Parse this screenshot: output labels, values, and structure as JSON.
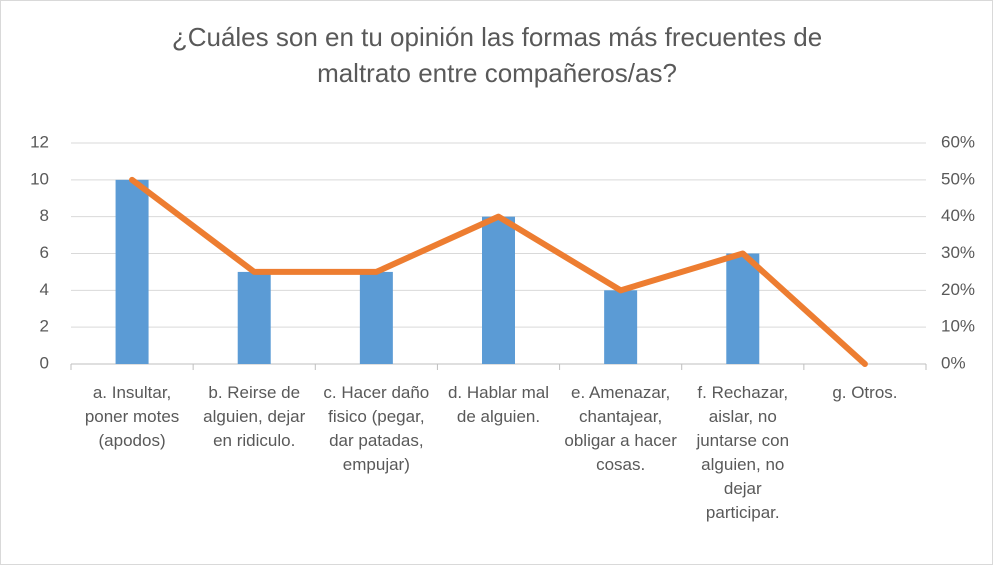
{
  "chart_data": {
    "type": "combo",
    "title": "¿Cuáles son en tu opinión las formas más frecuentes de maltrato entre compañeros/as?",
    "categories": [
      "a. Insultar, poner motes (apodos)",
      "b. Reirse de alguien, dejar en ridiculo.",
      "c. Hacer daño fisico (pegar, dar patadas, empujar)",
      "d. Hablar mal de alguien.",
      "e. Amenazar, chantajear, obligar a hacer cosas.",
      "f. Rechazar, aislar, no juntarse con alguien, no dejar participar.",
      "g. Otros."
    ],
    "series": [
      {
        "type": "bar",
        "color": "#5b9bd5",
        "values": [
          10,
          5,
          5,
          8,
          4,
          6,
          0
        ]
      },
      {
        "type": "line",
        "axis": "y2",
        "color": "#ed7d31",
        "values": [
          50,
          25,
          25,
          40,
          20,
          30,
          0
        ]
      }
    ],
    "ylim": [
      0,
      12
    ],
    "yticks": [
      0,
      2,
      4,
      6,
      8,
      10,
      12
    ],
    "y2lim": [
      0,
      60
    ],
    "y2ticks": [
      {
        "value": 0,
        "label": "0%"
      },
      {
        "value": 10,
        "label": "10%"
      },
      {
        "value": 20,
        "label": "20%"
      },
      {
        "value": 30,
        "label": "30%"
      },
      {
        "value": 40,
        "label": "40%"
      },
      {
        "value": 50,
        "label": "50%"
      },
      {
        "value": 60,
        "label": "60%"
      }
    ],
    "grid": true
  }
}
